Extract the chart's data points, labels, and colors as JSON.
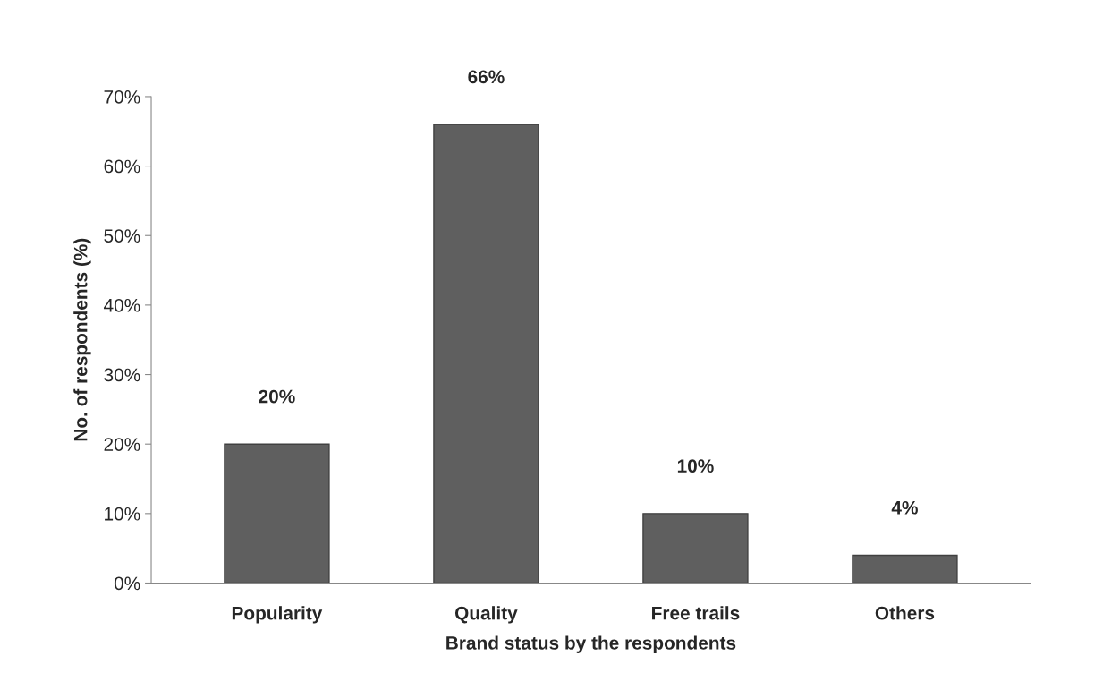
{
  "chart_data": {
    "type": "bar",
    "xlabel": "Brand status by the respondents",
    "ylabel": "No. of respondents (%)",
    "categories": [
      "Popularity",
      "Quality",
      "Free trails",
      "Others"
    ],
    "values": [
      20,
      66,
      10,
      4
    ],
    "value_labels": [
      "20%",
      "66%",
      "10%",
      "4%"
    ],
    "color": "#5f5f5f",
    "ylim": [
      0,
      70
    ],
    "yticks": [
      {
        "value": 0,
        "label": "0%"
      },
      {
        "value": 10,
        "label": "10%"
      },
      {
        "value": 20,
        "label": "20%"
      },
      {
        "value": 30,
        "label": "30%"
      },
      {
        "value": 40,
        "label": "40%"
      },
      {
        "value": 50,
        "label": "50%"
      },
      {
        "value": 60,
        "label": "60%"
      },
      {
        "value": 70,
        "label": "70%"
      }
    ],
    "grid": false,
    "legend": false
  }
}
